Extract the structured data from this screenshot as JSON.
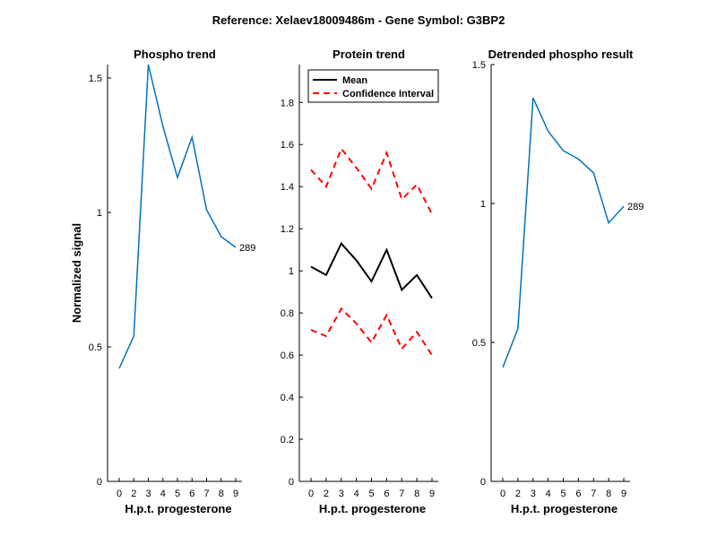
{
  "figure_title": "Reference:  Xelaev18009486m - Gene Symbol:  G3BP2",
  "chart_data": [
    {
      "type": "line",
      "title": "Phospho trend",
      "xlabel": "H.p.t. progesterone",
      "ylabel": "Normalized signal",
      "categories": [
        "0",
        "2",
        "3",
        "4",
        "5",
        "6",
        "7",
        "8",
        "9"
      ],
      "ylim": [
        0,
        1.55
      ],
      "yticks": [
        0,
        0.5,
        1,
        1.5
      ],
      "ytick_labels": [
        "0",
        "0.5",
        "1",
        "1.5"
      ],
      "series": [
        {
          "color": "#0072BD",
          "dash": "solid",
          "values": [
            0.42,
            0.54,
            1.55,
            1.32,
            1.13,
            1.28,
            1.01,
            0.91,
            0.87
          ]
        }
      ],
      "annotation": "289",
      "grid": false
    },
    {
      "type": "line",
      "title": "Protein trend",
      "xlabel": "H.p.t. progesterone",
      "ylabel": "",
      "categories": [
        "0",
        "2",
        "3",
        "4",
        "5",
        "6",
        "7",
        "8",
        "9"
      ],
      "ylim": [
        0,
        1.98
      ],
      "yticks": [
        0,
        0.2,
        0.4,
        0.6,
        0.8,
        1,
        1.2,
        1.4,
        1.6,
        1.8
      ],
      "ytick_labels": [
        "0",
        "0.2",
        "0.4",
        "0.6",
        "0.8",
        "1",
        "1.2",
        "1.4",
        "1.6",
        "1.8"
      ],
      "series": [
        {
          "name": "Mean",
          "color": "#000000",
          "dash": "solid",
          "values": [
            1.02,
            0.98,
            1.13,
            1.05,
            0.95,
            1.1,
            0.91,
            0.98,
            0.87
          ]
        },
        {
          "name": "Confidence Interval",
          "color": "#FF0000",
          "dash": "dashed",
          "values": [
            1.48,
            1.4,
            1.58,
            1.49,
            1.39,
            1.56,
            1.34,
            1.41,
            1.27
          ]
        },
        {
          "color": "#FF0000",
          "dash": "dashed",
          "values": [
            0.72,
            0.69,
            0.82,
            0.75,
            0.66,
            0.79,
            0.63,
            0.71,
            0.6
          ]
        }
      ],
      "legend": {
        "position": "top-left",
        "entries": [
          "Mean",
          "Confidence Interval"
        ]
      },
      "grid": false
    },
    {
      "type": "line",
      "title": "Detrended phospho result",
      "xlabel": "H.p.t. progesterone",
      "ylabel": "",
      "categories": [
        "0",
        "2",
        "3",
        "4",
        "5",
        "6",
        "7",
        "8",
        "9"
      ],
      "ylim": [
        0,
        1.5
      ],
      "yticks": [
        0,
        0.5,
        1,
        1.5
      ],
      "ytick_labels": [
        "0",
        "0.5",
        "1",
        "1.5"
      ],
      "series": [
        {
          "color": "#0072BD",
          "dash": "solid",
          "values": [
            0.41,
            0.55,
            1.38,
            1.26,
            1.19,
            1.16,
            1.11,
            0.93,
            0.99
          ]
        }
      ],
      "annotation": "289",
      "grid": false
    }
  ]
}
